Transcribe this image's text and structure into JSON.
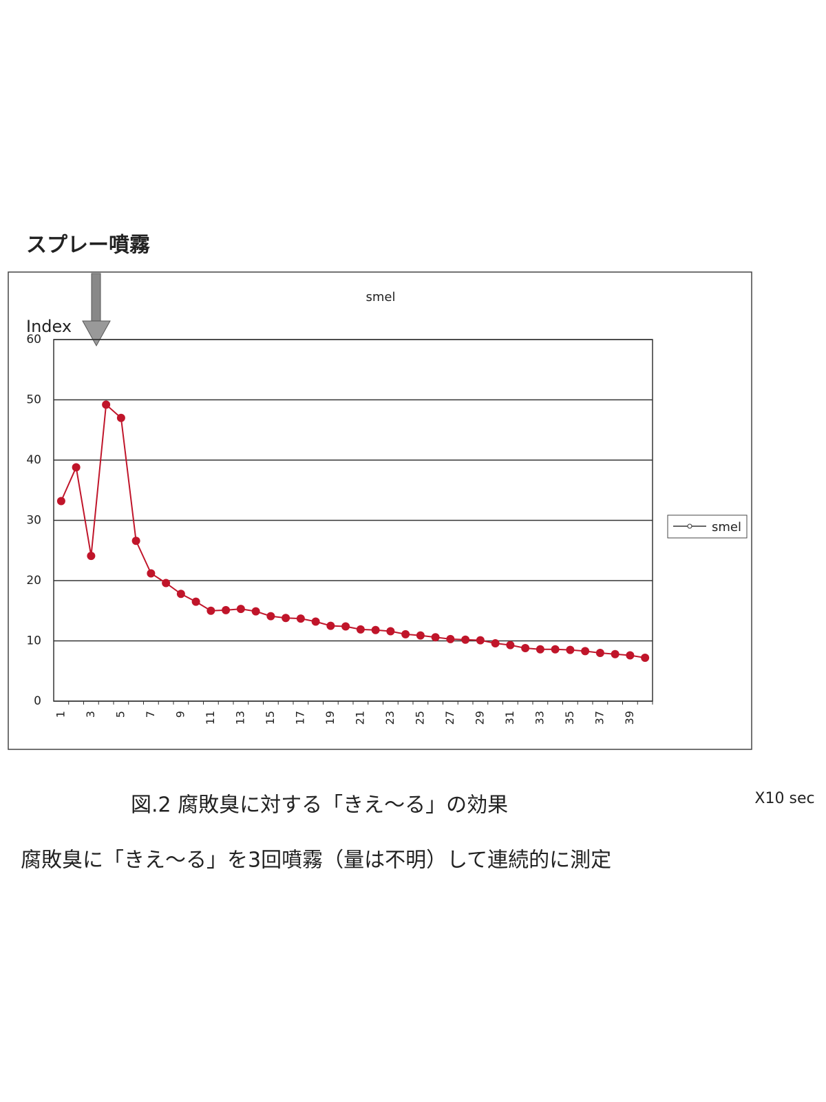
{
  "chart_data": {
    "type": "line",
    "title": "smel",
    "ylabel": "Index",
    "xlabel": "X10 sec",
    "annotation": "スプレー噴霧",
    "caption": "図.2 腐敗臭に対する「きえ～る」の効果",
    "note": "腐敗臭に「きえ～る」を3回噴霧（量は不明）して連続的に測定",
    "categories": [
      "1",
      null,
      "3",
      null,
      "5",
      null,
      "7",
      null,
      "9",
      null,
      "11",
      null,
      "13",
      null,
      "15",
      null,
      "17",
      null,
      "19",
      null,
      "21",
      null,
      "23",
      null,
      "25",
      null,
      "27",
      null,
      "29",
      null,
      "31",
      null,
      "33",
      null,
      "35",
      null,
      "37",
      null,
      "39",
      null
    ],
    "series": [
      {
        "name": "smel",
        "color": "#c0152a",
        "values": [
          33.2,
          38.8,
          24.1,
          49.2,
          47,
          26.6,
          21.2,
          19.6,
          17.8,
          16.5,
          15,
          15.1,
          15.3,
          14.9,
          14.1,
          13.8,
          13.7,
          13.2,
          12.5,
          12.4,
          11.9,
          11.8,
          11.6,
          11.1,
          10.9,
          10.6,
          10.3,
          10.2,
          10.1,
          9.6,
          9.3,
          8.8,
          8.6,
          8.6,
          8.5,
          8.3,
          8.0,
          7.8,
          7.6,
          7.2
        ]
      }
    ],
    "ylim": [
      0,
      60
    ],
    "yticks": [
      0,
      10,
      20,
      30,
      40,
      50,
      60
    ],
    "grid": true,
    "legend": "right"
  }
}
